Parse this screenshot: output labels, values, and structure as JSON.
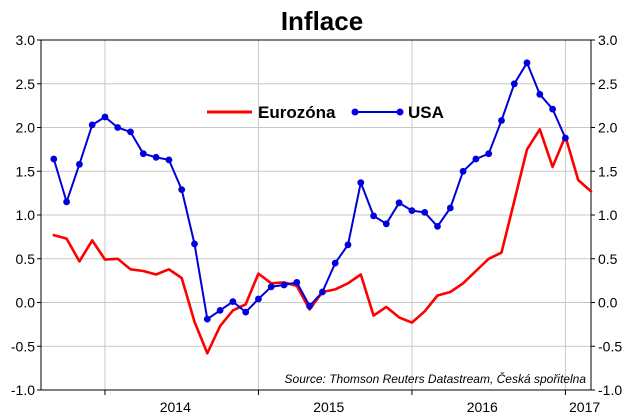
{
  "chart_data": {
    "type": "line",
    "title": "Inflace",
    "source": "Source: Thomson Reuters Datastream, Česká spořitelna",
    "ylim": [
      -1.0,
      3.0
    ],
    "yticks": [
      "3.0",
      "2.5",
      "2.0",
      "1.5",
      "1.0",
      "0.5",
      "0.0",
      "-0.5",
      "-1.0"
    ],
    "xticks": [
      "2014",
      "2015",
      "2016",
      "2017"
    ],
    "x_start": "2013-08",
    "x_end": "2017-03",
    "legend": {
      "position": "upper-center"
    },
    "colors": {
      "eurozona": "#ff0000",
      "usa": "#0000dd"
    },
    "series": [
      {
        "name": "Eurozóna",
        "markers": false,
        "start": "2013-09",
        "values": [
          0.77,
          0.73,
          0.47,
          0.71,
          0.49,
          0.5,
          0.38,
          0.36,
          0.32,
          0.38,
          0.28,
          -0.22,
          -0.58,
          -0.27,
          -0.09,
          -0.02,
          0.33,
          0.22,
          0.23,
          0.19,
          -0.08,
          0.12,
          0.15,
          0.22,
          0.32,
          -0.15,
          -0.05,
          -0.17,
          -0.23,
          -0.1,
          0.08,
          0.12,
          0.22,
          0.36,
          0.5,
          0.57,
          1.16,
          1.75,
          1.98,
          1.55,
          1.9,
          1.4,
          1.27
        ]
      },
      {
        "name": "USA",
        "markers": true,
        "start": "2013-09",
        "values": [
          1.64,
          1.15,
          1.58,
          2.03,
          2.12,
          2.0,
          1.95,
          1.7,
          1.66,
          1.63,
          1.29,
          0.67,
          -0.19,
          -0.09,
          0.01,
          -0.11,
          0.04,
          0.18,
          0.2,
          0.23,
          -0.04,
          0.12,
          0.45,
          0.66,
          1.37,
          0.99,
          0.9,
          1.14,
          1.05,
          1.03,
          0.87,
          1.08,
          1.5,
          1.64,
          1.7,
          2.08,
          2.5,
          2.74,
          2.38,
          2.21,
          1.88
        ]
      }
    ]
  }
}
